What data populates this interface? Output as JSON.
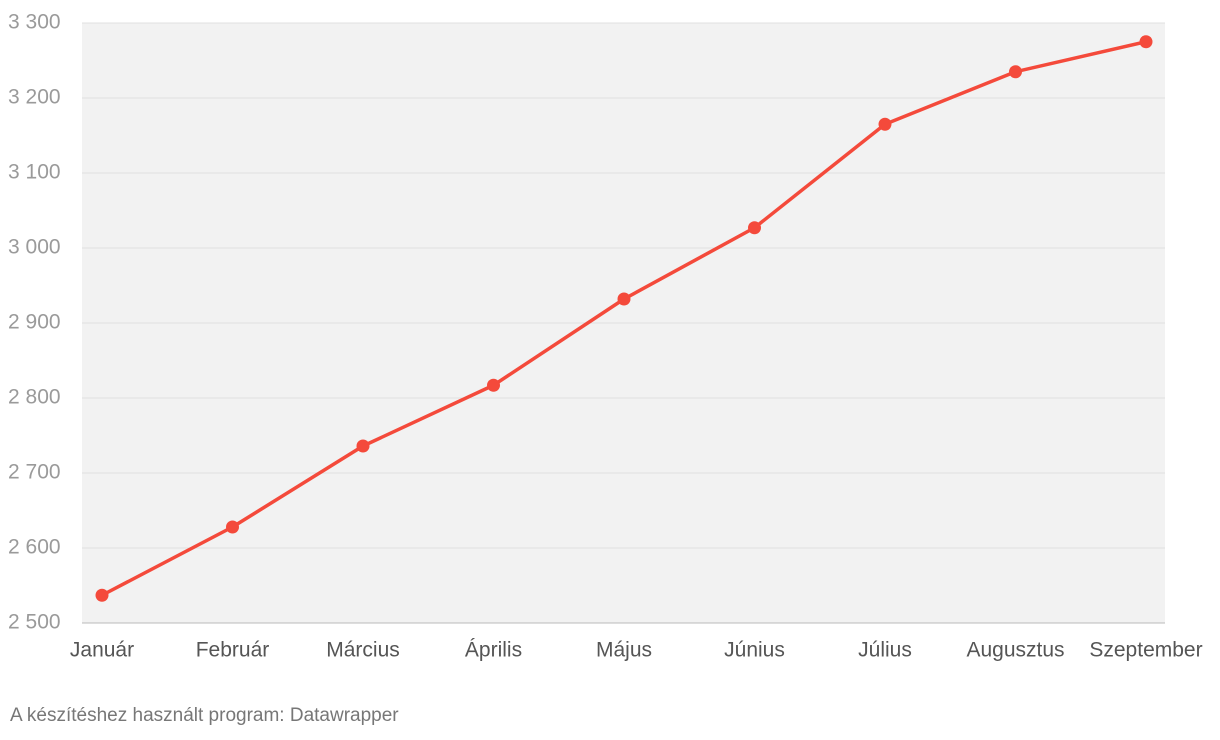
{
  "chart_data": {
    "type": "line",
    "categories": [
      "Január",
      "Február",
      "Március",
      "Április",
      "Május",
      "Június",
      "Július",
      "Augusztus",
      "Szeptember"
    ],
    "values": [
      2537,
      2628,
      2736,
      2817,
      2932,
      3027,
      3165,
      3235,
      3275
    ],
    "color": "#f44a3b",
    "ylim": [
      2500,
      3300
    ],
    "yticks": [
      {
        "value": 2500,
        "label": "2 500"
      },
      {
        "value": 2600,
        "label": "2 600"
      },
      {
        "value": 2700,
        "label": "2 700"
      },
      {
        "value": 2800,
        "label": "2 800"
      },
      {
        "value": 2900,
        "label": "2 900"
      },
      {
        "value": 3000,
        "label": "3 000"
      },
      {
        "value": 3100,
        "label": "3 100"
      },
      {
        "value": 3200,
        "label": "3 200"
      },
      {
        "value": 3300,
        "label": "3 300"
      }
    ],
    "grid": true,
    "source": "A készítéshez használt program: Datawrapper"
  }
}
